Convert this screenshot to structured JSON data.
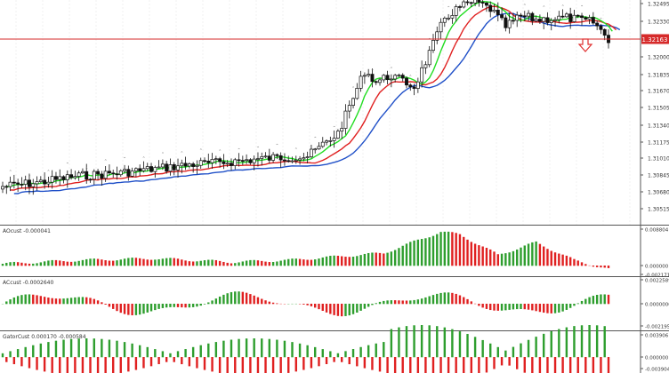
{
  "main": {
    "price_ticks": [
      "1.32495",
      "1.32330",
      "1.32000",
      "1.31835",
      "1.31670",
      "1.31505",
      "1.31340",
      "1.31175",
      "1.31010",
      "1.30845",
      "1.30680",
      "1.30515"
    ],
    "current_price": "1.32163",
    "current_price_color": "#d62a2a"
  },
  "panels": [
    {
      "title": "AOcust -0.000041",
      "ticks": [
        "0.008804",
        "0.000000",
        "-0.002171"
      ]
    },
    {
      "title": "ACcust -0.0002640",
      "ticks": [
        "0.0022589",
        "0.0000000",
        "-0.0021956"
      ]
    },
    {
      "title": "GatorCust 0.000170 -0.000584",
      "ticks": [
        "0.003906",
        "0.000000",
        "-0.003904"
      ]
    }
  ],
  "colors": {
    "up": "#2e9e2e",
    "down": "#e02020",
    "jaw": "#2050c8",
    "teeth": "#e02020",
    "lips": "#22dd22",
    "fractal_arrow": "#e03030"
  },
  "icons": {
    "fractal_arrow": "down-arrow-icon",
    "fractal_marker": "fractal-marker-icon"
  }
}
